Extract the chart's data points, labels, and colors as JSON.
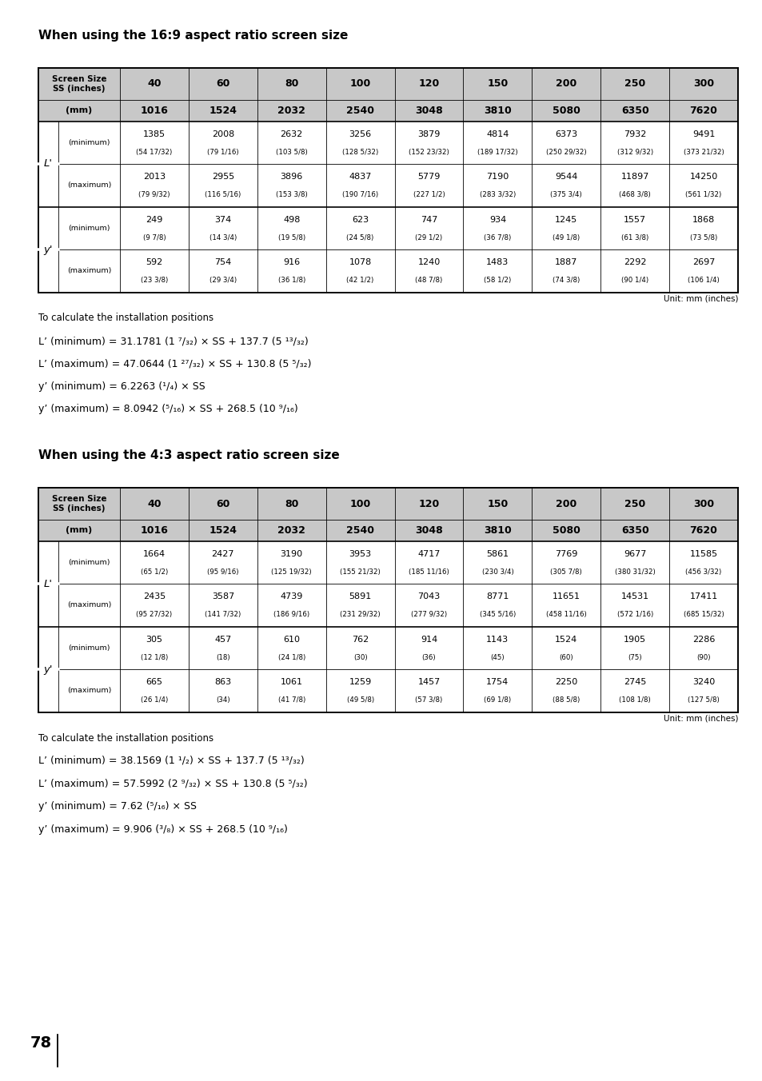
{
  "title1": "When using the 16:9 aspect ratio screen size",
  "title2": "When using the 4:3 aspect ratio screen size",
  "screen_sizes": [
    "40",
    "60",
    "80",
    "100",
    "120",
    "150",
    "200",
    "250",
    "300"
  ],
  "mm_values": [
    "1016",
    "1524",
    "2032",
    "2540",
    "3048",
    "3810",
    "5080",
    "6350",
    "7620"
  ],
  "table1": {
    "L_min_mm": [
      "1385",
      "2008",
      "2632",
      "3256",
      "3879",
      "4814",
      "6373",
      "7932",
      "9491"
    ],
    "L_min_in": [
      "(54 17/32)",
      "(79 1/16)",
      "(103 5/8)",
      "(128 5/32)",
      "(152 23/32)",
      "(189 17/32)",
      "(250 29/32)",
      "(312 9/32)",
      "(373 21/32)"
    ],
    "L_max_mm": [
      "2013",
      "2955",
      "3896",
      "4837",
      "5779",
      "7190",
      "9544",
      "11897",
      "14250"
    ],
    "L_max_in": [
      "(79 9/32)",
      "(116 5/16)",
      "(153 3/8)",
      "(190 7/16)",
      "(227 1/2)",
      "(283 3/32)",
      "(375 3/4)",
      "(468 3/8)",
      "(561 1/32)"
    ],
    "y_min_mm": [
      "249",
      "374",
      "498",
      "623",
      "747",
      "934",
      "1245",
      "1557",
      "1868"
    ],
    "y_min_in": [
      "(9 7/8)",
      "(14 3/4)",
      "(19 5/8)",
      "(24 5/8)",
      "(29 1/2)",
      "(36 7/8)",
      "(49 1/8)",
      "(61 3/8)",
      "(73 5/8)"
    ],
    "y_max_mm": [
      "592",
      "754",
      "916",
      "1078",
      "1240",
      "1483",
      "1887",
      "2292",
      "2697"
    ],
    "y_max_in": [
      "(23 3/8)",
      "(29 3/4)",
      "(36 1/8)",
      "(42 1/2)",
      "(48 7/8)",
      "(58 1/2)",
      "(74 3/8)",
      "(90 1/4)",
      "(106 1/4)"
    ]
  },
  "table2": {
    "L_min_mm": [
      "1664",
      "2427",
      "3190",
      "3953",
      "4717",
      "5861",
      "7769",
      "9677",
      "11585"
    ],
    "L_min_in": [
      "(65 1/2)",
      "(95 9/16)",
      "(125 19/32)",
      "(155 21/32)",
      "(185 11/16)",
      "(230 3/4)",
      "(305 7/8)",
      "(380 31/32)",
      "(456 3/32)"
    ],
    "L_max_mm": [
      "2435",
      "3587",
      "4739",
      "5891",
      "7043",
      "8771",
      "11651",
      "14531",
      "17411"
    ],
    "L_max_in": [
      "(95 27/32)",
      "(141 7/32)",
      "(186 9/16)",
      "(231 29/32)",
      "(277 9/32)",
      "(345 5/16)",
      "(458 11/16)",
      "(572 1/16)",
      "(685 15/32)"
    ],
    "y_min_mm": [
      "305",
      "457",
      "610",
      "762",
      "914",
      "1143",
      "1524",
      "1905",
      "2286"
    ],
    "y_min_in": [
      "(12 1/8)",
      "(18)",
      "(24 1/8)",
      "(30)",
      "(36)",
      "(45)",
      "(60)",
      "(75)",
      "(90)"
    ],
    "y_max_mm": [
      "665",
      "863",
      "1061",
      "1259",
      "1457",
      "1754",
      "2250",
      "2745",
      "3240"
    ],
    "y_max_in": [
      "(26 1/4)",
      "(34)",
      "(41 7/8)",
      "(49 5/8)",
      "(57 3/8)",
      "(69 1/8)",
      "(88 5/8)",
      "(108 1/8)",
      "(127 5/8)"
    ]
  },
  "unit_text": "Unit: mm (inches)",
  "page_number": "78",
  "bg_color": "#ffffff",
  "header_bg": "#c8c8c8",
  "line_color": "#000000"
}
